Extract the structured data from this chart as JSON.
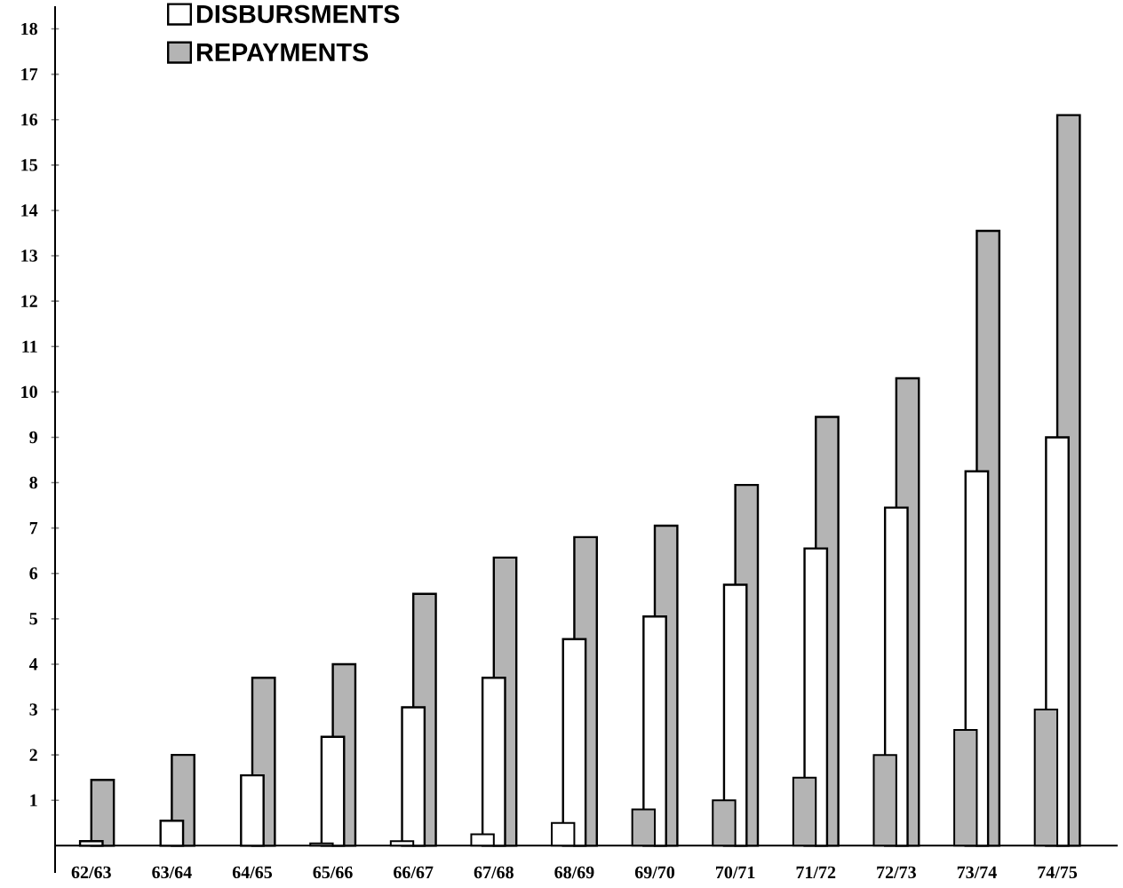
{
  "chart_data": {
    "type": "bar",
    "categories": [
      "62/63",
      "63/64",
      "64/65",
      "65/66",
      "66/67",
      "67/68",
      "68/69",
      "69/70",
      "70/71",
      "71/72",
      "72/73",
      "73/74",
      "74/75"
    ],
    "series": [
      {
        "colors": [
          null,
          null,
          null,
          "#ffffff",
          "#ffffff",
          "#ffffff",
          "#ffffff",
          "#b4b4b4",
          "#b4b4b4",
          "#b4b4b4",
          "#b4b4b4",
          "#b4b4b4",
          "#b4b4b4"
        ],
        "values": [
          null,
          null,
          null,
          0.05,
          0.1,
          0.25,
          0.5,
          0.8,
          1.0,
          1.5,
          2.0,
          2.55,
          3.0
        ]
      },
      {
        "name": "DISBURSMENTS",
        "color": "#ffffff",
        "values": [
          0.1,
          0.55,
          1.55,
          2.4,
          3.05,
          3.7,
          4.55,
          5.05,
          5.75,
          6.55,
          7.45,
          8.25,
          9.0
        ]
      },
      {
        "name": "REPAYMENTS",
        "color": "#b4b4b4",
        "values": [
          1.45,
          2.0,
          3.7,
          4.0,
          5.55,
          6.35,
          6.8,
          7.05,
          7.95,
          9.45,
          10.3,
          13.55,
          16.1
        ]
      }
    ],
    "ylim": [
      -0.6,
      18.5
    ],
    "yticks": [
      1,
      2,
      3,
      4,
      5,
      6,
      7,
      8,
      9,
      10,
      11,
      12,
      13,
      14,
      15,
      16,
      17,
      18
    ],
    "legend": "top left"
  }
}
